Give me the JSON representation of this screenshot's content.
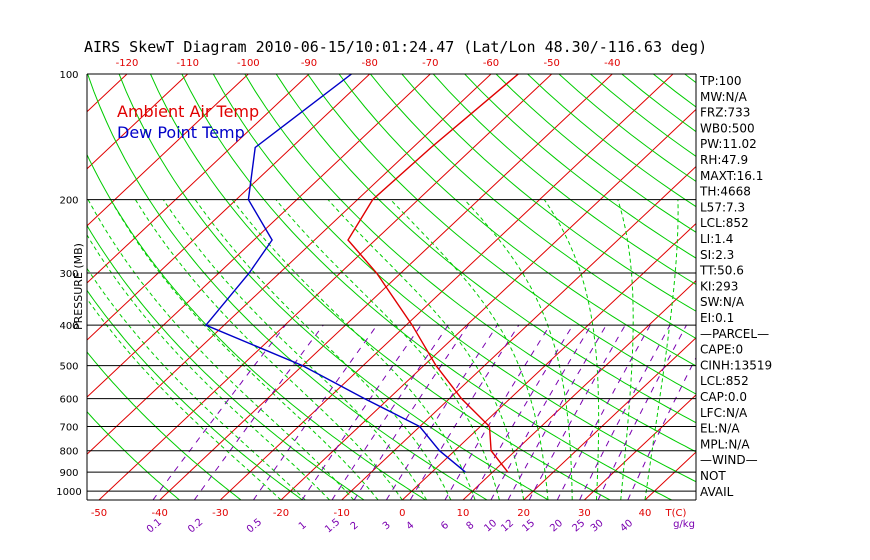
{
  "title": "AIRS SkewT Diagram 2010-06-15/10:01:24.47 (Lat/Lon 48.30/-116.63 deg)",
  "legend": {
    "air": "Ambient Air Temp",
    "dew": "Dew Point Temp",
    "air_color": "#e00000",
    "dew_color": "#0000c8"
  },
  "colors": {
    "dry_adiabat": "#00cc00",
    "moist_adiabat": "#00cc00",
    "mixing_ratio": "#7a00b0",
    "isotherm": "#e00000",
    "isobar": "#000000"
  },
  "chart_data": {
    "type": "line",
    "chart_kind": "skew-t log-p",
    "xlabel": "T(C)",
    "ylabel": "PRESSURE (MB)",
    "pressure_ticks": [
      100,
      200,
      300,
      400,
      500,
      600,
      700,
      800,
      900,
      1000
    ],
    "pressure_range": [
      100,
      1050
    ],
    "top_temp_ticks": [
      -120,
      -110,
      -100,
      -90,
      -80,
      -70,
      -60,
      -50,
      -40
    ],
    "bottom_temp_ticks": [
      -50,
      -40,
      -30,
      -20,
      -10,
      0,
      10,
      20,
      30,
      40
    ],
    "bottom_temp_labels": [
      "-50",
      "-40",
      "-30",
      "-20",
      "-10",
      "0",
      "10",
      "20",
      "30",
      "40"
    ],
    "mixing_ratio_ticks": [
      "0.1",
      "0.2",
      "0.5",
      "1",
      "1.5",
      "2",
      "3",
      "4",
      "6",
      "8",
      "10",
      "12",
      "15",
      "20",
      "25",
      "30",
      "40"
    ],
    "bottom_unit": "T(C)",
    "mixing_unit": "g/kg",
    "series": [
      {
        "name": "Ambient Air Temp",
        "points": [
          {
            "p": 100,
            "t": -55.5
          },
          {
            "p": 150,
            "t": -57.0
          },
          {
            "p": 200,
            "t": -57.5
          },
          {
            "p": 250,
            "t": -54.5
          },
          {
            "p": 300,
            "t": -44.0
          },
          {
            "p": 400,
            "t": -29.0
          },
          {
            "p": 500,
            "t": -18.0
          },
          {
            "p": 600,
            "t": -8.0
          },
          {
            "p": 700,
            "t": 1.5
          },
          {
            "p": 800,
            "t": 6.0
          },
          {
            "p": 900,
            "t": 12.5
          }
        ]
      },
      {
        "name": "Dew Point Temp",
        "points": [
          {
            "p": 100,
            "t": -83.0
          },
          {
            "p": 150,
            "t": -86.0
          },
          {
            "p": 200,
            "t": -78.0
          },
          {
            "p": 250,
            "t": -67.0
          },
          {
            "p": 300,
            "t": -65.0
          },
          {
            "p": 400,
            "t": -63.0
          },
          {
            "p": 500,
            "t": -40.0
          },
          {
            "p": 600,
            "t": -24.0
          },
          {
            "p": 700,
            "t": -10.0
          },
          {
            "p": 800,
            "t": -2.5
          },
          {
            "p": 900,
            "t": 5.5
          }
        ]
      }
    ]
  },
  "indices": [
    "TP:100",
    "MW:N/A",
    "FRZ:733",
    "WB0:500",
    "PW:11.02",
    "RH:47.9",
    "MAXT:16.1",
    "TH:4668",
    "L57:7.3",
    "LCL:852",
    "LI:1.4",
    "SI:2.3",
    "TT:50.6",
    "KI:293",
    "SW:N/A",
    "EI:0.1",
    "—PARCEL—",
    "CAPE:0",
    "CINH:13519",
    "LCL:852",
    "CAP:0.0",
    "LFC:N/A",
    "EL:N/A",
    "MPL:N/A",
    "—WIND—",
    "NOT",
    "AVAIL"
  ]
}
